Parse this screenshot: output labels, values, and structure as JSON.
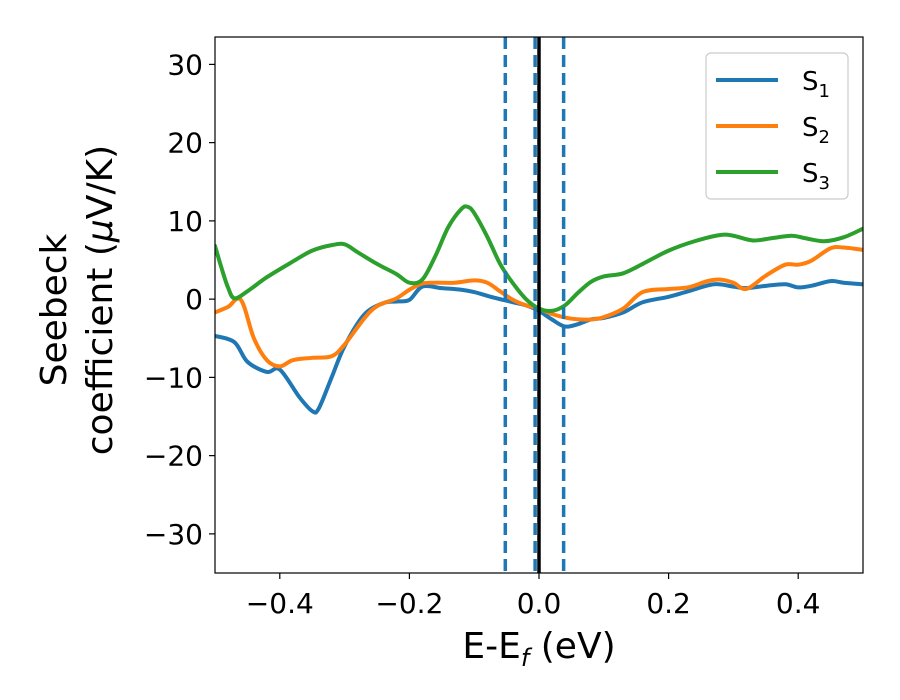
{
  "chart_data": {
    "type": "line",
    "xlabel": {
      "main": "E-E",
      "sub": "f",
      "tail": " (eV)"
    },
    "ylabel": {
      "line1": "Seebeck",
      "line2_pre": "coefficient  (",
      "mu": "μ",
      "line2_post": "V/K)"
    },
    "xlim": [
      -0.5,
      0.5
    ],
    "ylim": [
      -35,
      33.5
    ],
    "x_ticks": [
      -0.4,
      -0.2,
      0.0,
      0.2,
      0.4
    ],
    "x_tick_labels": [
      "−0.4",
      "−0.2",
      "0.0",
      "0.2",
      "0.4"
    ],
    "y_ticks": [
      30,
      20,
      10,
      0,
      -10,
      -20,
      -30
    ],
    "y_tick_labels": [
      "30",
      "20",
      "10",
      "0",
      "−10",
      "−20",
      "−30"
    ],
    "grid": false,
    "legend_position": "top-right",
    "colors": {
      "S1": "#1f77b4",
      "S2": "#ff7f0e",
      "S3": "#2ca02c",
      "fermi": "#000000",
      "bounds": "#1f77b4"
    },
    "vlines": [
      {
        "x": 0.0,
        "style": "solid",
        "color": "#000000"
      },
      {
        "x": -0.052,
        "style": "dashed",
        "color": "#1f77b4"
      },
      {
        "x": -0.006,
        "style": "dashed",
        "color": "#1f77b4"
      },
      {
        "x": 0.038,
        "style": "dashed",
        "color": "#1f77b4"
      }
    ],
    "series": [
      {
        "name": "S",
        "sub": "1",
        "color": "#1f77b4",
        "x": [
          -0.5,
          -0.47,
          -0.45,
          -0.42,
          -0.4,
          -0.37,
          -0.35,
          -0.34,
          -0.32,
          -0.3,
          -0.27,
          -0.24,
          -0.22,
          -0.2,
          -0.18,
          -0.15,
          -0.12,
          -0.1,
          -0.07,
          -0.04,
          -0.02,
          0.0,
          0.02,
          0.04,
          0.06,
          0.08,
          0.1,
          0.13,
          0.16,
          0.2,
          0.23,
          0.27,
          0.3,
          0.32,
          0.35,
          0.38,
          0.4,
          0.42,
          0.45,
          0.47,
          0.5
        ],
        "y": [
          -4.7,
          -5.5,
          -8.0,
          -9.3,
          -9.0,
          -12.5,
          -14.3,
          -14.0,
          -10.0,
          -6.0,
          -2.0,
          -0.5,
          -0.3,
          -0.1,
          1.6,
          1.4,
          1.2,
          0.9,
          0.2,
          -0.4,
          -0.8,
          -1.5,
          -2.6,
          -3.5,
          -3.2,
          -2.6,
          -2.4,
          -1.7,
          -0.4,
          0.3,
          1.0,
          1.9,
          1.6,
          1.4,
          1.7,
          1.9,
          1.5,
          1.7,
          2.3,
          2.1,
          1.9
        ]
      },
      {
        "name": "S",
        "sub": "2",
        "color": "#ff7f0e",
        "x": [
          -0.5,
          -0.48,
          -0.46,
          -0.44,
          -0.42,
          -0.4,
          -0.38,
          -0.35,
          -0.32,
          -0.3,
          -0.27,
          -0.25,
          -0.22,
          -0.2,
          -0.18,
          -0.16,
          -0.13,
          -0.1,
          -0.08,
          -0.06,
          -0.04,
          -0.02,
          0.0,
          0.02,
          0.05,
          0.08,
          0.1,
          0.13,
          0.16,
          0.2,
          0.23,
          0.26,
          0.28,
          0.3,
          0.32,
          0.35,
          0.38,
          0.4,
          0.42,
          0.45,
          0.47,
          0.5
        ],
        "y": [
          -1.7,
          -1.0,
          -0.1,
          -5.0,
          -7.8,
          -8.6,
          -7.8,
          -7.5,
          -7.3,
          -5.8,
          -2.5,
          -0.9,
          0.1,
          1.2,
          2.0,
          2.1,
          2.1,
          2.4,
          2.1,
          1.0,
          -0.1,
          -0.8,
          -1.2,
          -1.9,
          -2.5,
          -2.6,
          -2.3,
          -1.2,
          0.9,
          1.3,
          1.5,
          2.3,
          2.5,
          2.1,
          1.3,
          3.0,
          4.4,
          4.4,
          4.9,
          6.5,
          6.6,
          6.3
        ]
      },
      {
        "name": "S",
        "sub": "3",
        "color": "#2ca02c",
        "x": [
          -0.5,
          -0.49,
          -0.48,
          -0.47,
          -0.45,
          -0.42,
          -0.38,
          -0.35,
          -0.32,
          -0.3,
          -0.28,
          -0.25,
          -0.22,
          -0.2,
          -0.18,
          -0.16,
          -0.14,
          -0.12,
          -0.11,
          -0.1,
          -0.08,
          -0.06,
          -0.04,
          -0.02,
          0.0,
          0.02,
          0.04,
          0.06,
          0.08,
          0.1,
          0.13,
          0.16,
          0.2,
          0.24,
          0.28,
          0.3,
          0.33,
          0.36,
          0.39,
          0.41,
          0.44,
          0.47,
          0.5
        ],
        "y": [
          6.8,
          4.0,
          1.5,
          0.1,
          1.0,
          2.8,
          4.8,
          6.2,
          6.9,
          7.0,
          6.0,
          4.5,
          3.2,
          2.1,
          2.5,
          5.5,
          9.2,
          11.5,
          11.8,
          11.0,
          8.0,
          4.5,
          2.0,
          0.0,
          -1.2,
          -1.5,
          -0.8,
          0.8,
          2.2,
          2.9,
          3.3,
          4.5,
          6.2,
          7.4,
          8.2,
          8.1,
          7.5,
          7.8,
          8.1,
          7.8,
          7.4,
          7.9,
          9.0
        ]
      }
    ]
  }
}
